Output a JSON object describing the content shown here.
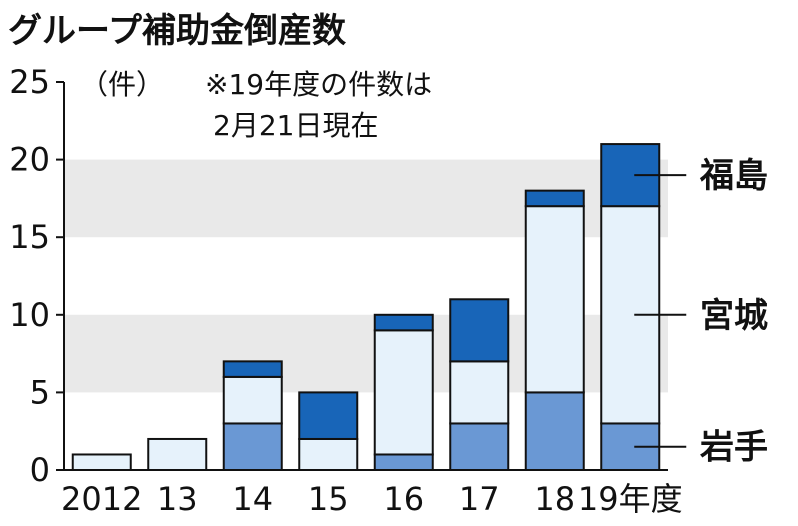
{
  "chart_data": {
    "type": "bar",
    "stacked": true,
    "title": "グループ補助金倒産数",
    "unit_label": "（件）",
    "note_line1": "※19年度の件数は",
    "note_line2": "2月21日現在",
    "categories": [
      "2012",
      "13",
      "14",
      "15",
      "16",
      "17",
      "18",
      "19年度"
    ],
    "ylim": [
      0,
      25
    ],
    "yticks": [
      0,
      5,
      10,
      15,
      20,
      25
    ],
    "grid_bands": true,
    "legend_placement": "right (labels beside last bar)",
    "series": [
      {
        "name": "岩手",
        "color": "#6a98d4",
        "values": [
          0,
          0,
          3,
          0,
          1,
          3,
          5,
          3
        ]
      },
      {
        "name": "宮城",
        "color": "#e6f2fb",
        "values": [
          1,
          2,
          3,
          2,
          8,
          4,
          12,
          14
        ]
      },
      {
        "name": "福島",
        "color": "#1865b8",
        "values": [
          0,
          0,
          1,
          3,
          1,
          4,
          1,
          4
        ]
      }
    ]
  }
}
